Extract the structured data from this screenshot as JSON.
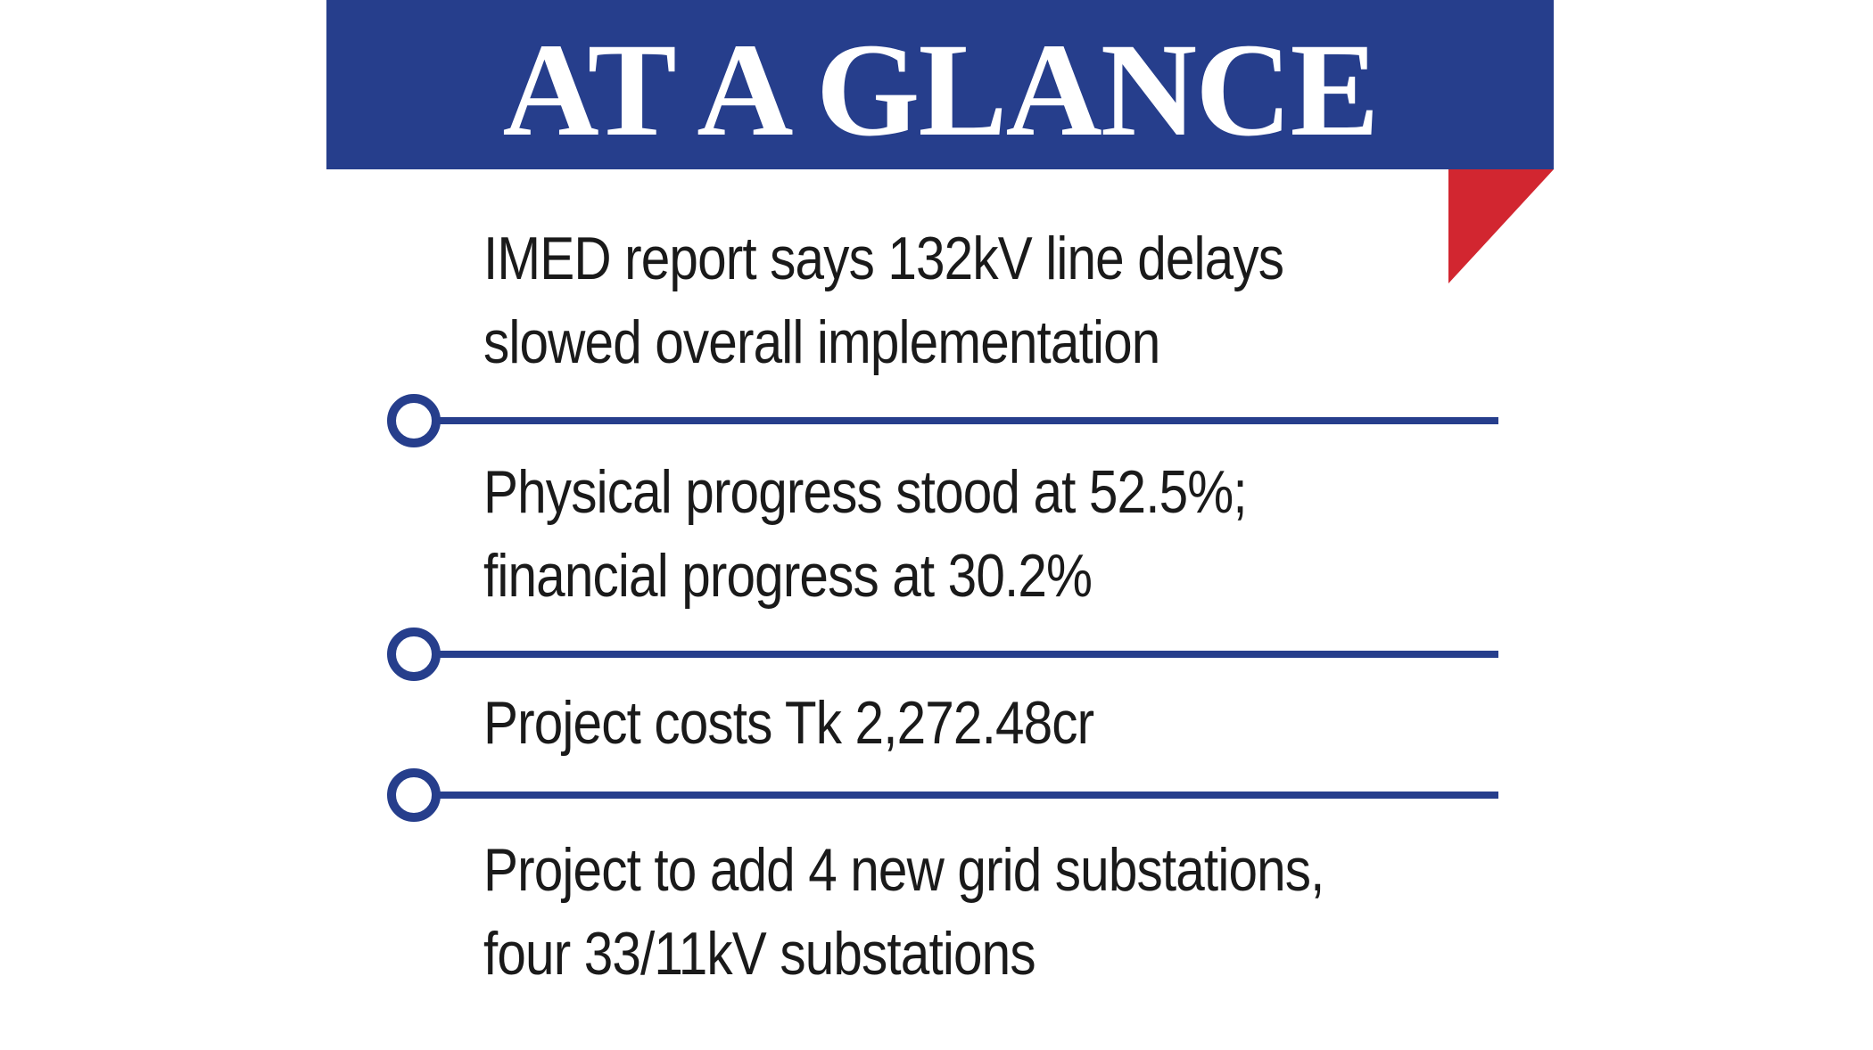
{
  "header": {
    "title": "AT A GLANCE"
  },
  "colors": {
    "header_bg": "#263e8c",
    "accent_red": "#d22630",
    "divider": "#263e8c",
    "text": "#1a1a1a"
  },
  "items": [
    {
      "lines": [
        "IMED report says 132kV line delays",
        "slowed overall implementation"
      ]
    },
    {
      "lines": [
        "Physical progress stood at 52.5%;",
        "financial progress at 30.2%"
      ]
    },
    {
      "lines": [
        "Project costs Tk 2,272.48cr"
      ]
    },
    {
      "lines": [
        "Project to add 4 new grid substations,",
        "four 33/11kV substations"
      ]
    }
  ]
}
